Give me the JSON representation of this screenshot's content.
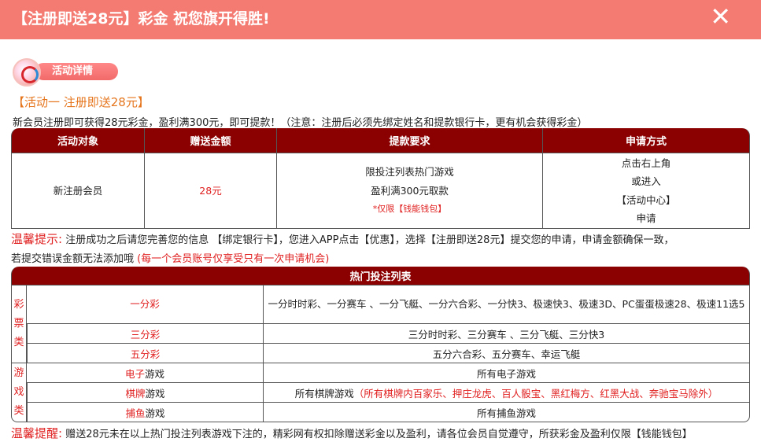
{
  "header": {
    "title": "【注册即送28元】彩金 祝您旗开得胜!",
    "close_label": "✕"
  },
  "badge": {
    "label": "活动详情"
  },
  "activity": {
    "title": "【活动一 注册即送28元】",
    "intro": "新会员注册即可获得28元彩金，盈利满300元，即可提款！（注意：注册后必须先绑定姓名和提款银行卡，更有机会获得彩金）"
  },
  "table1": {
    "headers": [
      "活动对象",
      "赠送金额",
      "提款要求",
      "申请方式"
    ],
    "row": {
      "target": "新注册会员",
      "amount": "28元",
      "req_line1": "限投注列表热门游戏",
      "req_line2": "盈利满300元取款",
      "req_note": "*仅限【钱能钱包】",
      "apply": [
        "点击右上角",
        "或进入",
        "【活动中心】",
        "申请"
      ]
    }
  },
  "tip1": {
    "label": "温馨提示:",
    "text": "注册成功之后请您完善您的信息 【绑定银行卡】，您进入APP点击【优惠】，选择【注册即送28元】提交您的申请，申请金额确保一致，",
    "text2": "若提交错误金额无法添加哦",
    "note": "(每一个会员账号仅享受只有一次申请机会)"
  },
  "table2": {
    "title": "热门投注列表",
    "cat_lottery": [
      "彩",
      "票",
      "类"
    ],
    "cat_games": [
      "游",
      "戏",
      "类"
    ],
    "rows": [
      {
        "name_red": "一分彩",
        "name_black": "",
        "games": "一分时时彩、一分赛车 、一分飞艇、一分六合彩、一分快3、极速快3、极速3D、PC蛋蛋极速28、极速11选5"
      },
      {
        "name_red": "三分彩",
        "name_black": "",
        "games": "三分时时彩、三分赛车 、三分飞艇、三分快3"
      },
      {
        "name_red": "五分彩",
        "name_black": "",
        "games": "五分六合彩、五分赛车、幸运飞艇"
      },
      {
        "name_red": "电子",
        "name_black": "游戏",
        "games": "所有电子游戏"
      },
      {
        "name_red": "棋牌",
        "name_black": "游戏",
        "games": "所有棋牌游戏",
        "games_note": "（所有棋牌内百家乐、押庄龙虎、百人骰宝、黑红梅方、红黑大战、奔驰宝马除外）"
      },
      {
        "name_red": "捕鱼",
        "name_black": "游戏",
        "games": "所有捕鱼游戏"
      }
    ]
  },
  "tip2": {
    "label": "温馨提醒:",
    "text": "赠送28元未在以上热门投注列表游戏下注的，精彩网有权扣除赠送彩金以及盈利，请各位会员自觉遵守，所获彩金及盈利仅限【钱能钱包】"
  },
  "colors": {
    "topbar": "#f47b72",
    "table_header": "#8b0000",
    "accent_red": "#e02020",
    "title_orange": "#e5761e"
  }
}
